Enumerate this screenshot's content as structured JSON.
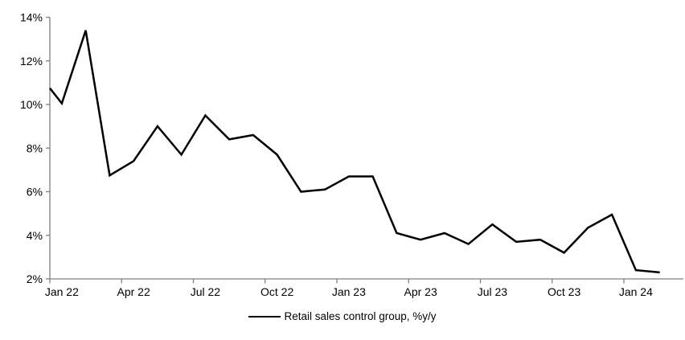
{
  "chart_data": {
    "type": "line",
    "title": "",
    "legend": "Retail sales control group, %y/y",
    "legend_position": "bottom-center",
    "grid": false,
    "background": "#ffffff",
    "axis_color": "#808080",
    "categories": [
      "Jan 22",
      "Feb 22",
      "Mar 22",
      "Apr 22",
      "May 22",
      "Jun 22",
      "Jul 22",
      "Aug 22",
      "Sep 22",
      "Oct 22",
      "Nov 22",
      "Dec 22",
      "Jan 23",
      "Feb 23",
      "Mar 23",
      "Apr 23",
      "May 23",
      "Jun 23",
      "Jul 23",
      "Aug 23",
      "Sep 23",
      "Oct 23",
      "Nov 23",
      "Dec 23",
      "Jan 24",
      "Feb 24"
    ],
    "series": [
      {
        "name": "Retail sales control group, %y/y",
        "color": "#000000",
        "values": [
          10.05,
          13.4,
          6.75,
          7.4,
          9.0,
          7.7,
          9.5,
          8.4,
          8.6,
          7.7,
          6.0,
          6.1,
          6.7,
          6.7,
          4.1,
          3.8,
          4.1,
          3.6,
          4.5,
          3.7,
          3.8,
          3.2,
          4.35,
          4.95,
          2.4,
          2.3
        ]
      }
    ],
    "line_enters_left_edge_at": 10.75,
    "y_axis": {
      "min": 2,
      "max": 14,
      "step": 2,
      "tick_labels": [
        "2%",
        "4%",
        "6%",
        "8%",
        "10%",
        "12%",
        "14%"
      ]
    },
    "x_axis": {
      "label_every_n_months": 3,
      "tick_labels": [
        "Jan 22",
        "Apr 22",
        "Jul 22",
        "Oct 22",
        "Jan 23",
        "Apr 23",
        "Jul 23",
        "Oct 23",
        "Jan 24"
      ]
    }
  }
}
